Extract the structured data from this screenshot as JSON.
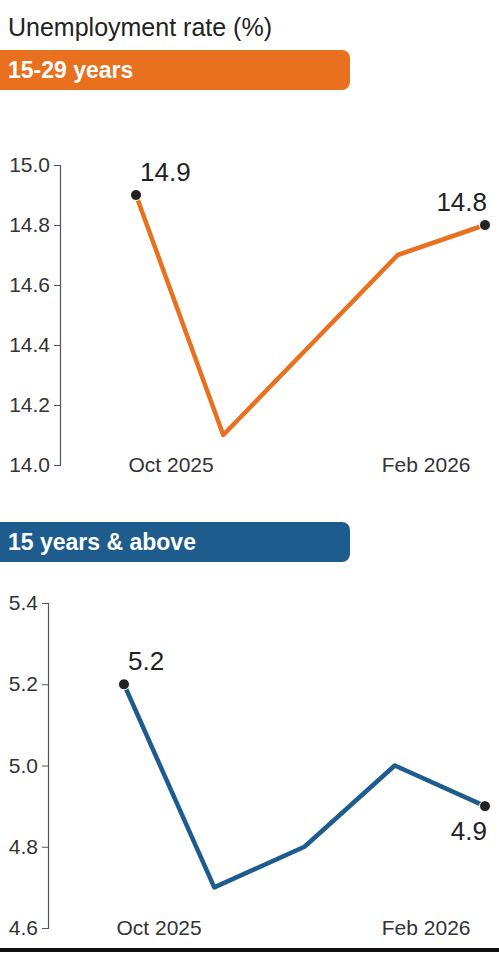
{
  "title": "Unemployment rate (%)",
  "chart_data": [
    {
      "type": "line",
      "title": "15-29 years",
      "categories": [
        "Oct 2025",
        null,
        null,
        null,
        "Feb 2026"
      ],
      "values": [
        14.9,
        14.1,
        14.4,
        14.7,
        14.8
      ],
      "value_labels": [
        "14.9",
        null,
        null,
        null,
        "14.8"
      ],
      "data_labels": true,
      "color": "#e8701f",
      "marker": "circle",
      "line_style": "solid",
      "ylim": [
        14.0,
        15.0
      ],
      "yticks": [
        {
          "value": 14,
          "label": "14.0"
        },
        14.2,
        14.4,
        14.6,
        14.8,
        {
          "value": 15,
          "label": "15.0"
        }
      ],
      "grid": false
    },
    {
      "type": "line",
      "title": "15 years & above",
      "categories": [
        "Oct 2025",
        null,
        null,
        null,
        "Feb 2026"
      ],
      "values": [
        5.2,
        4.7,
        4.8,
        5.0,
        4.9
      ],
      "value_labels": [
        "5.2",
        null,
        null,
        null,
        "4.9"
      ],
      "data_labels": true,
      "color": "#1d5c8c",
      "marker": "circle",
      "line_style": "solid",
      "ylim": [
        4.6,
        5.4
      ],
      "yticks": [
        4.6,
        4.8,
        {
          "value": 5,
          "label": "5.0"
        },
        5.2,
        5.4
      ],
      "grid": false
    }
  ]
}
